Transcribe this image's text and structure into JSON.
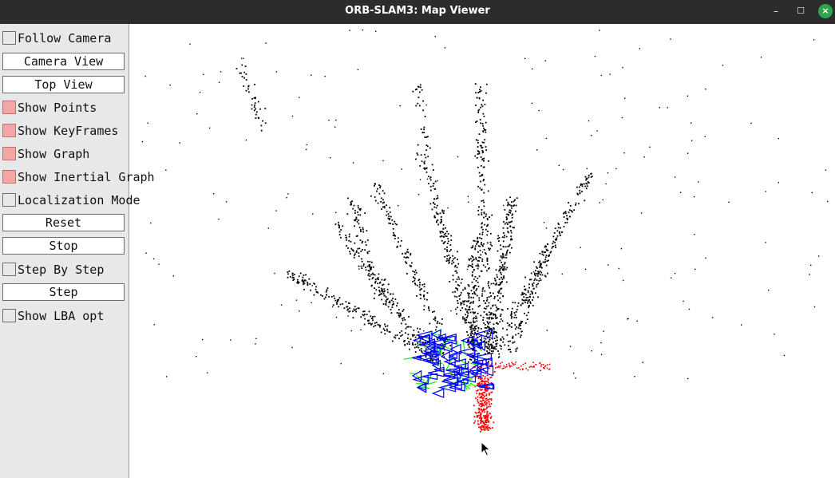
{
  "window": {
    "title": "ORB-SLAM3: Map Viewer",
    "minimize_glyph": "–",
    "maximize_glyph": "☐",
    "close_glyph": "×"
  },
  "panel": {
    "controls": [
      {
        "kind": "checkbox",
        "label": "Follow Camera",
        "checked": false
      },
      {
        "kind": "button",
        "label": "Camera View"
      },
      {
        "kind": "button",
        "label": "Top View"
      },
      {
        "kind": "checkbox",
        "label": "Show Points",
        "checked": true
      },
      {
        "kind": "checkbox",
        "label": "Show KeyFrames",
        "checked": true
      },
      {
        "kind": "checkbox",
        "label": "Show Graph",
        "checked": true
      },
      {
        "kind": "checkbox",
        "label": "Show Inertial Graph",
        "checked": true
      },
      {
        "kind": "checkbox",
        "label": "Localization Mode",
        "checked": false
      },
      {
        "kind": "button",
        "label": "Reset"
      },
      {
        "kind": "button",
        "label": "Stop"
      },
      {
        "kind": "checkbox",
        "label": "Step By Step",
        "checked": false
      },
      {
        "kind": "button",
        "label": "Step"
      },
      {
        "kind": "checkbox",
        "label": "Show LBA opt",
        "checked": false
      }
    ]
  },
  "viewer": {
    "background": "#ffffff",
    "map_point_color": "#000000",
    "local_map_point_color": "#ff0000",
    "keyframe_color": "#0000ff",
    "graph_color": "#00ff00"
  },
  "cursor_icon": "arrow-cursor-icon"
}
